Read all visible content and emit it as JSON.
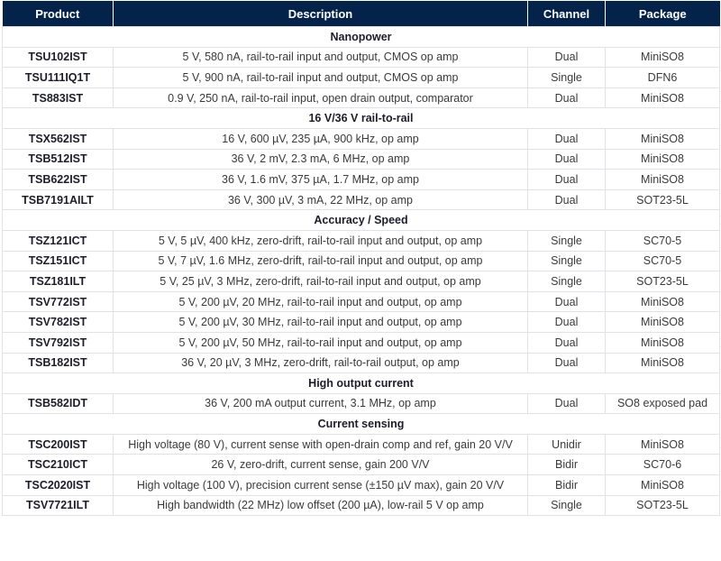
{
  "headers": [
    "Product",
    "Description",
    "Channel",
    "Package"
  ],
  "groups": [
    {
      "title": "Nanopower",
      "rows": [
        [
          "TSU102IST",
          "5 V, 580 nA, rail-to-rail input and output, CMOS op amp",
          "Dual",
          "MiniSO8"
        ],
        [
          "TSU111IQ1T",
          "5 V, 900 nA, rail-to-rail input and output, CMOS op amp",
          "Single",
          "DFN6"
        ],
        [
          "TS883IST",
          "0.9 V, 250 nA, rail-to-rail input, open drain output, comparator",
          "Dual",
          "MiniSO8"
        ]
      ]
    },
    {
      "title": "16 V/36 V rail-to-rail",
      "rows": [
        [
          "TSX562IST",
          "16 V, 600 µV, 235 µA, 900 kHz, op amp",
          "Dual",
          "MiniSO8"
        ],
        [
          "TSB512IST",
          "36 V, 2 mV, 2.3 mA, 6 MHz, op amp",
          "Dual",
          "MiniSO8"
        ],
        [
          "TSB622IST",
          "36 V, 1.6 mV, 375 µA, 1.7 MHz, op amp",
          "Dual",
          "MiniSO8"
        ],
        [
          "TSB7191AILT",
          "36 V, 300 µV, 3 mA, 22 MHz, op amp",
          "Dual",
          "SOT23-5L"
        ]
      ]
    },
    {
      "title": "Accuracy / Speed",
      "rows": [
        [
          "TSZ121ICT",
          "5 V, 5 µV, 400 kHz, zero-drift, rail-to-rail input and output, op amp",
          "Single",
          "SC70-5"
        ],
        [
          "TSZ151ICT",
          "5 V, 7 µV, 1.6 MHz, zero-drift, rail-to-rail input and output, op amp",
          "Single",
          "SC70-5"
        ],
        [
          "TSZ181ILT",
          "5 V, 25 µV, 3 MHz, zero-drift, rail-to-rail input and output, op amp",
          "Single",
          "SOT23-5L"
        ],
        [
          "TSV772IST",
          "5 V, 200 µV, 20 MHz, rail-to-rail input and output, op amp",
          "Dual",
          "MiniSO8"
        ],
        [
          "TSV782IST",
          "5 V, 200 µV, 30 MHz, rail-to-rail input and output, op amp",
          "Dual",
          "MiniSO8"
        ],
        [
          "TSV792IST",
          "5 V, 200 µV, 50 MHz, rail-to-rail input and output, op amp",
          "Dual",
          "MiniSO8"
        ],
        [
          "TSB182IST",
          "36 V, 20 µV, 3 MHz, zero-drift, rail-to-rail output, op amp",
          "Dual",
          "MiniSO8"
        ]
      ]
    },
    {
      "title": "High output current",
      "rows": [
        [
          "TSB582IDT",
          "36 V, 200 mA output current, 3.1 MHz, op amp",
          "Dual",
          "SO8 exposed pad"
        ]
      ]
    },
    {
      "title": "Current sensing",
      "rows": [
        [
          "TSC200IST",
          "High voltage (80 V), current sense with open-drain comp and ref, gain 20 V/V",
          "Unidir",
          "MiniSO8"
        ],
        [
          "TSC210ICT",
          "26 V, zero-drift, current sense, gain 200 V/V",
          "Bidir",
          "SC70-6"
        ],
        [
          "TSC2020IST",
          "High voltage (100 V), precision current sense (±150 µV max), gain 20 V/V",
          "Bidir",
          "MiniSO8"
        ],
        [
          "TSV7721ILT",
          "High bandwidth (22 MHz) low offset (200 µA), low-rail 5 V op amp",
          "Single",
          "SOT23-5L"
        ]
      ]
    }
  ]
}
